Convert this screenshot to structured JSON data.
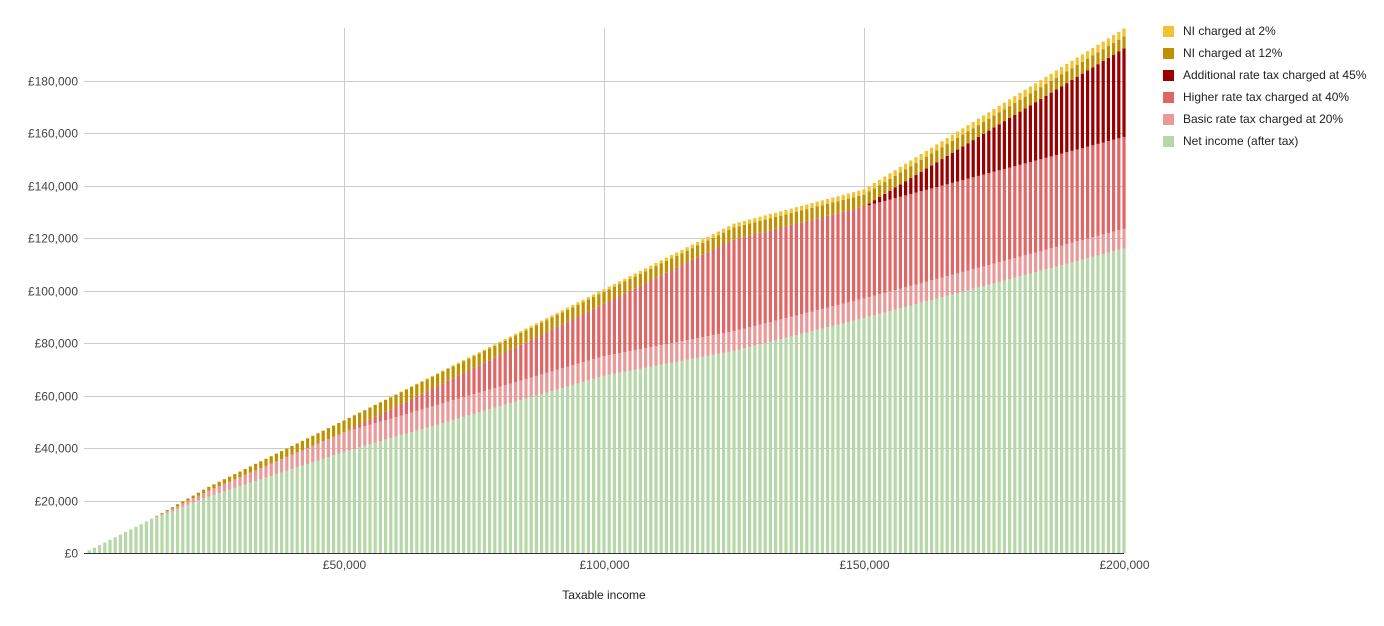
{
  "chart_data": {
    "type": "bar",
    "stacked": true,
    "xlabel": "Taxable income",
    "ylabel": "",
    "x_range": [
      0,
      200000
    ],
    "ylim": [
      0,
      200000
    ],
    "x_ticks": [
      50000,
      100000,
      150000,
      200000
    ],
    "x_tick_labels": [
      "£50,000",
      "£100,000",
      "£150,000",
      "£200,000"
    ],
    "y_ticks": [
      0,
      20000,
      40000,
      60000,
      80000,
      100000,
      120000,
      140000,
      160000,
      180000
    ],
    "y_tick_labels": [
      "£0",
      "£20,000",
      "£40,000",
      "£60,000",
      "£80,000",
      "£100,000",
      "£120,000",
      "£140,000",
      "£160,000",
      "£180,000"
    ],
    "x_step": 1000,
    "x_start": 1000,
    "x_end": 200000,
    "grid": true,
    "legend_position": "right",
    "series": [
      {
        "name": "Net income (after tax)",
        "color": "#b6d7a8",
        "x": [
          1000,
          12500,
          24000,
          50000,
          100000,
          125000,
          150000,
          200000
        ],
        "values": [
          1000,
          12500,
          21500,
          38500,
          67500,
          77000,
          89500,
          116000
        ]
      },
      {
        "name": "Basic rate tax charged at 20%",
        "color": "#ea9999",
        "x": [
          1000,
          12500,
          24000,
          50000,
          100000,
          125000,
          150000,
          200000
        ],
        "values": [
          0,
          0,
          2300,
          7500,
          7500,
          7500,
          7500,
          7500
        ]
      },
      {
        "name": "Higher rate tax charged at 40%",
        "color": "#e06666",
        "x": [
          1000,
          12500,
          24000,
          50000,
          100000,
          125000,
          150000,
          200000
        ],
        "values": [
          0,
          0,
          0,
          0,
          20000,
          35000,
          35000,
          35000
        ]
      },
      {
        "name": "Additional rate tax charged at 45%",
        "color": "#990000",
        "x": [
          1000,
          12500,
          24000,
          50000,
          100000,
          125000,
          150000,
          200000
        ],
        "values": [
          0,
          0,
          0,
          0,
          0,
          0,
          0,
          33750
        ]
      },
      {
        "name": "NI charged at 12%",
        "color": "#bf9000",
        "x": [
          1000,
          12500,
          24000,
          50000,
          100000,
          125000,
          150000,
          200000
        ],
        "values": [
          0,
          0,
          1400,
          4500,
          4500,
          4500,
          4500,
          4500
        ]
      },
      {
        "name": "NI charged at 2%",
        "color": "#f1c232",
        "x": [
          1000,
          12500,
          24000,
          50000,
          100000,
          125000,
          150000,
          200000
        ],
        "values": [
          0,
          0,
          0,
          0,
          1000,
          1500,
          2000,
          3000
        ]
      }
    ],
    "legend_order": [
      "NI charged at 2%",
      "NI charged at 12%",
      "Additional rate tax charged at 45%",
      "Higher rate tax charged at 40%",
      "Basic rate tax charged at 20%",
      "Net income (after tax)"
    ]
  }
}
